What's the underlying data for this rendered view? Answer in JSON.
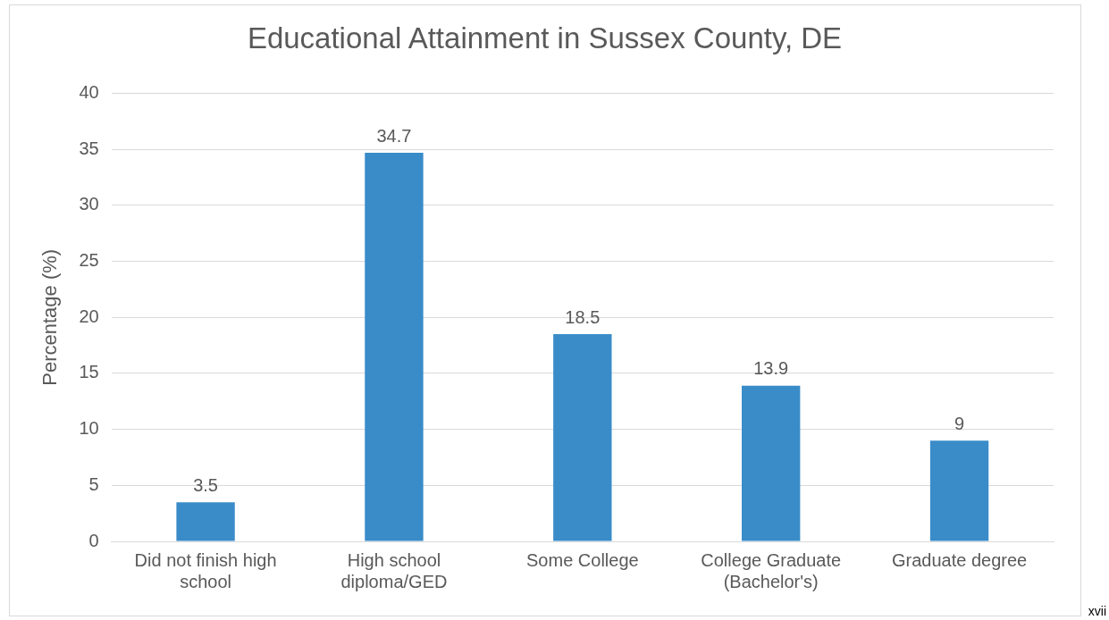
{
  "chart_data": {
    "type": "bar",
    "title": "Educational Attainment in Sussex County, DE",
    "ylabel": "Percentage (%)",
    "categories": [
      "Did not finish high school",
      "High school diploma/GED",
      "Some College",
      "College Graduate (Bachelor's)",
      "Graduate degree"
    ],
    "values": [
      3.5,
      34.7,
      18.5,
      13.9,
      9
    ],
    "color": "#3a8cc9",
    "ylim": [
      0,
      40
    ],
    "yticks": [
      0,
      5,
      10,
      15,
      20,
      25,
      30,
      35,
      40
    ],
    "grid": "y",
    "data_labels": true,
    "legend": false,
    "annotations": [
      "xvii"
    ]
  }
}
